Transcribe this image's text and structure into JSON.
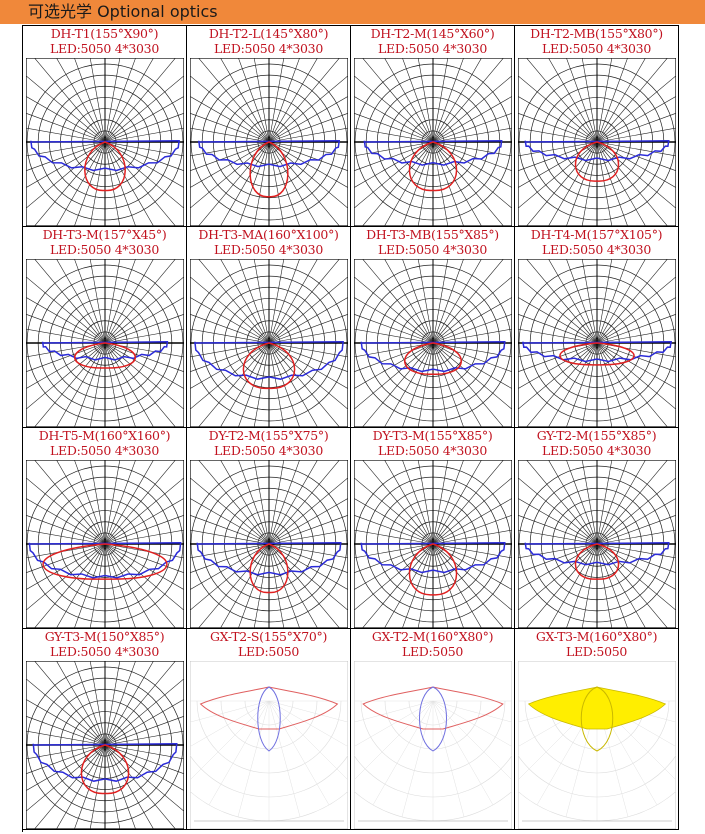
{
  "header": {
    "title": "可选光学 Optional optics"
  },
  "optics": [
    {
      "name": "DH-T1(155°X90°)",
      "led": "LED:5050 4*3030",
      "style": "polar"
    },
    {
      "name": "DH-T2-L(145°X80°)",
      "led": "LED:5050 4*3030",
      "style": "polar"
    },
    {
      "name": "DH-T2-M(145°X60°)",
      "led": "LED:5050 4*3030",
      "style": "polar"
    },
    {
      "name": "DH-T2-MB(155°X80°)",
      "led": "LED:5050 4*3030",
      "style": "polar"
    },
    {
      "name": "DH-T3-M(157°X45°)",
      "led": "LED:5050 4*3030",
      "style": "polar"
    },
    {
      "name": "DH-T3-MA(160°X100°)",
      "led": "LED:5050 4*3030",
      "style": "polar"
    },
    {
      "name": "DH-T3-MB(155°X85°)",
      "led": "LED:5050 4*3030",
      "style": "polar"
    },
    {
      "name": "DH-T4-M(157°X105°)",
      "led": "LED:5050 4*3030",
      "style": "polar"
    },
    {
      "name": "DH-T5-M(160°X160°)",
      "led": "LED:5050 4*3030",
      "style": "polar"
    },
    {
      "name": "DY-T2-M(155°X75°)",
      "led": "LED:5050 4*3030",
      "style": "polar"
    },
    {
      "name": "DY-T3-M(155°X85°)",
      "led": "LED:5050 4*3030",
      "style": "polar"
    },
    {
      "name": "GY-T2-M(155°X85°)",
      "led": "LED:5050 4*3030",
      "style": "polar"
    },
    {
      "name": "GY-T3-M(150°X85°)",
      "led": "LED:5050 4*3030",
      "style": "polar"
    },
    {
      "name": "GX-T2-S(155°X70°)",
      "led": "LED:5050",
      "style": "light"
    },
    {
      "name": "GX-T2-M(160°X80°)",
      "led": "LED:5050",
      "style": "light"
    },
    {
      "name": "GX-T3-M(160°X80°)",
      "led": "LED:5050",
      "style": "yellow"
    }
  ],
  "colors": {
    "header_bg": "#f0883a",
    "label": "#c1121f",
    "curve_c0": "#2b2bd8",
    "curve_c90": "#e02020",
    "fill_yellow": "#ffee00"
  }
}
